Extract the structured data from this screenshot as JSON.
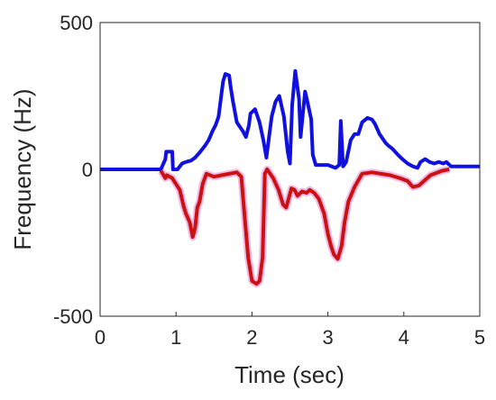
{
  "chart_data": {
    "type": "line",
    "title": "",
    "xlabel": "Time (sec)",
    "ylabel": "Frequency (Hz)",
    "xlim": [
      0,
      5
    ],
    "ylim": [
      -500,
      500
    ],
    "x_ticks": [
      0,
      1,
      2,
      3,
      4,
      5
    ],
    "x_tick_labels": [
      "0",
      "1",
      "2",
      "3",
      "4",
      "5"
    ],
    "y_ticks": [
      -500,
      0,
      500
    ],
    "y_tick_labels": [
      "-500",
      "0",
      "500"
    ],
    "grid": false,
    "legend": "none",
    "series": [
      {
        "color": "#1010e0",
        "x": [
          0,
          0.8,
          0.86,
          0.87,
          0.95,
          0.96,
          1.02,
          1.08,
          1.13,
          1.2,
          1.25,
          1.32,
          1.38,
          1.43,
          1.48,
          1.52,
          1.56,
          1.6,
          1.62,
          1.65,
          1.7,
          1.72,
          1.75,
          1.8,
          1.88,
          1.92,
          1.96,
          1.98,
          2.04,
          2.1,
          2.15,
          2.19,
          2.22,
          2.26,
          2.31,
          2.36,
          2.42,
          2.47,
          2.5,
          2.53,
          2.57,
          2.62,
          2.64,
          2.7,
          2.73,
          2.78,
          2.8,
          2.84,
          2.9,
          3.0,
          3.1,
          3.15,
          3.17,
          3.2,
          3.24,
          3.3,
          3.35,
          3.4,
          3.45,
          3.52,
          3.58,
          3.62,
          3.68,
          3.72,
          3.76,
          3.8,
          3.85,
          3.92,
          3.98,
          4.05,
          4.12,
          4.18,
          4.22,
          4.28,
          4.34,
          4.4,
          4.46,
          4.52,
          4.56,
          4.62,
          5.0
        ],
        "y": [
          0,
          0,
          35,
          60,
          60,
          0,
          0,
          20,
          25,
          30,
          40,
          60,
          80,
          100,
          130,
          150,
          180,
          260,
          300,
          325,
          320,
          280,
          230,
          160,
          130,
          110,
          150,
          190,
          205,
          160,
          100,
          40,
          100,
          180,
          230,
          250,
          180,
          60,
          20,
          220,
          335,
          240,
          110,
          265,
          230,
          170,
          50,
          15,
          15,
          15,
          5,
          15,
          165,
          10,
          25,
          100,
          120,
          120,
          160,
          175,
          170,
          155,
          120,
          105,
          90,
          80,
          70,
          50,
          35,
          20,
          10,
          5,
          25,
          35,
          25,
          20,
          25,
          20,
          25,
          10,
          10
        ]
      },
      {
        "color": "#cc1111",
        "x": [
          0.8,
          0.86,
          0.88,
          0.95,
          1.05,
          1.1,
          1.13,
          1.18,
          1.22,
          1.25,
          1.28,
          1.31,
          1.35,
          1.4,
          1.5,
          1.6,
          1.7,
          1.8,
          1.86,
          1.9,
          1.95,
          2.0,
          2.06,
          2.1,
          2.14,
          2.17,
          2.2,
          2.28,
          2.35,
          2.41,
          2.45,
          2.52,
          2.56,
          2.6,
          2.66,
          2.72,
          2.76,
          2.82,
          2.88,
          2.95,
          3.0,
          3.04,
          3.08,
          3.13,
          3.18,
          3.22,
          3.27,
          3.35,
          3.45,
          3.58,
          3.7,
          3.82,
          3.95,
          4.05,
          4.12,
          4.2,
          4.35,
          4.5,
          4.6
        ],
        "y": [
          -5,
          -30,
          -20,
          -30,
          -70,
          -125,
          -150,
          -180,
          -230,
          -200,
          -130,
          -110,
          -50,
          -15,
          -25,
          -20,
          -15,
          -10,
          -25,
          -150,
          -300,
          -380,
          -390,
          -380,
          -300,
          -15,
          0,
          -30,
          -70,
          -120,
          -130,
          -65,
          -70,
          -90,
          -75,
          -80,
          -70,
          -80,
          -100,
          -150,
          -220,
          -260,
          -290,
          -305,
          -260,
          -180,
          -110,
          -60,
          -15,
          -10,
          -15,
          -20,
          -30,
          -40,
          -60,
          -55,
          -20,
          -5,
          0
        ]
      }
    ]
  }
}
